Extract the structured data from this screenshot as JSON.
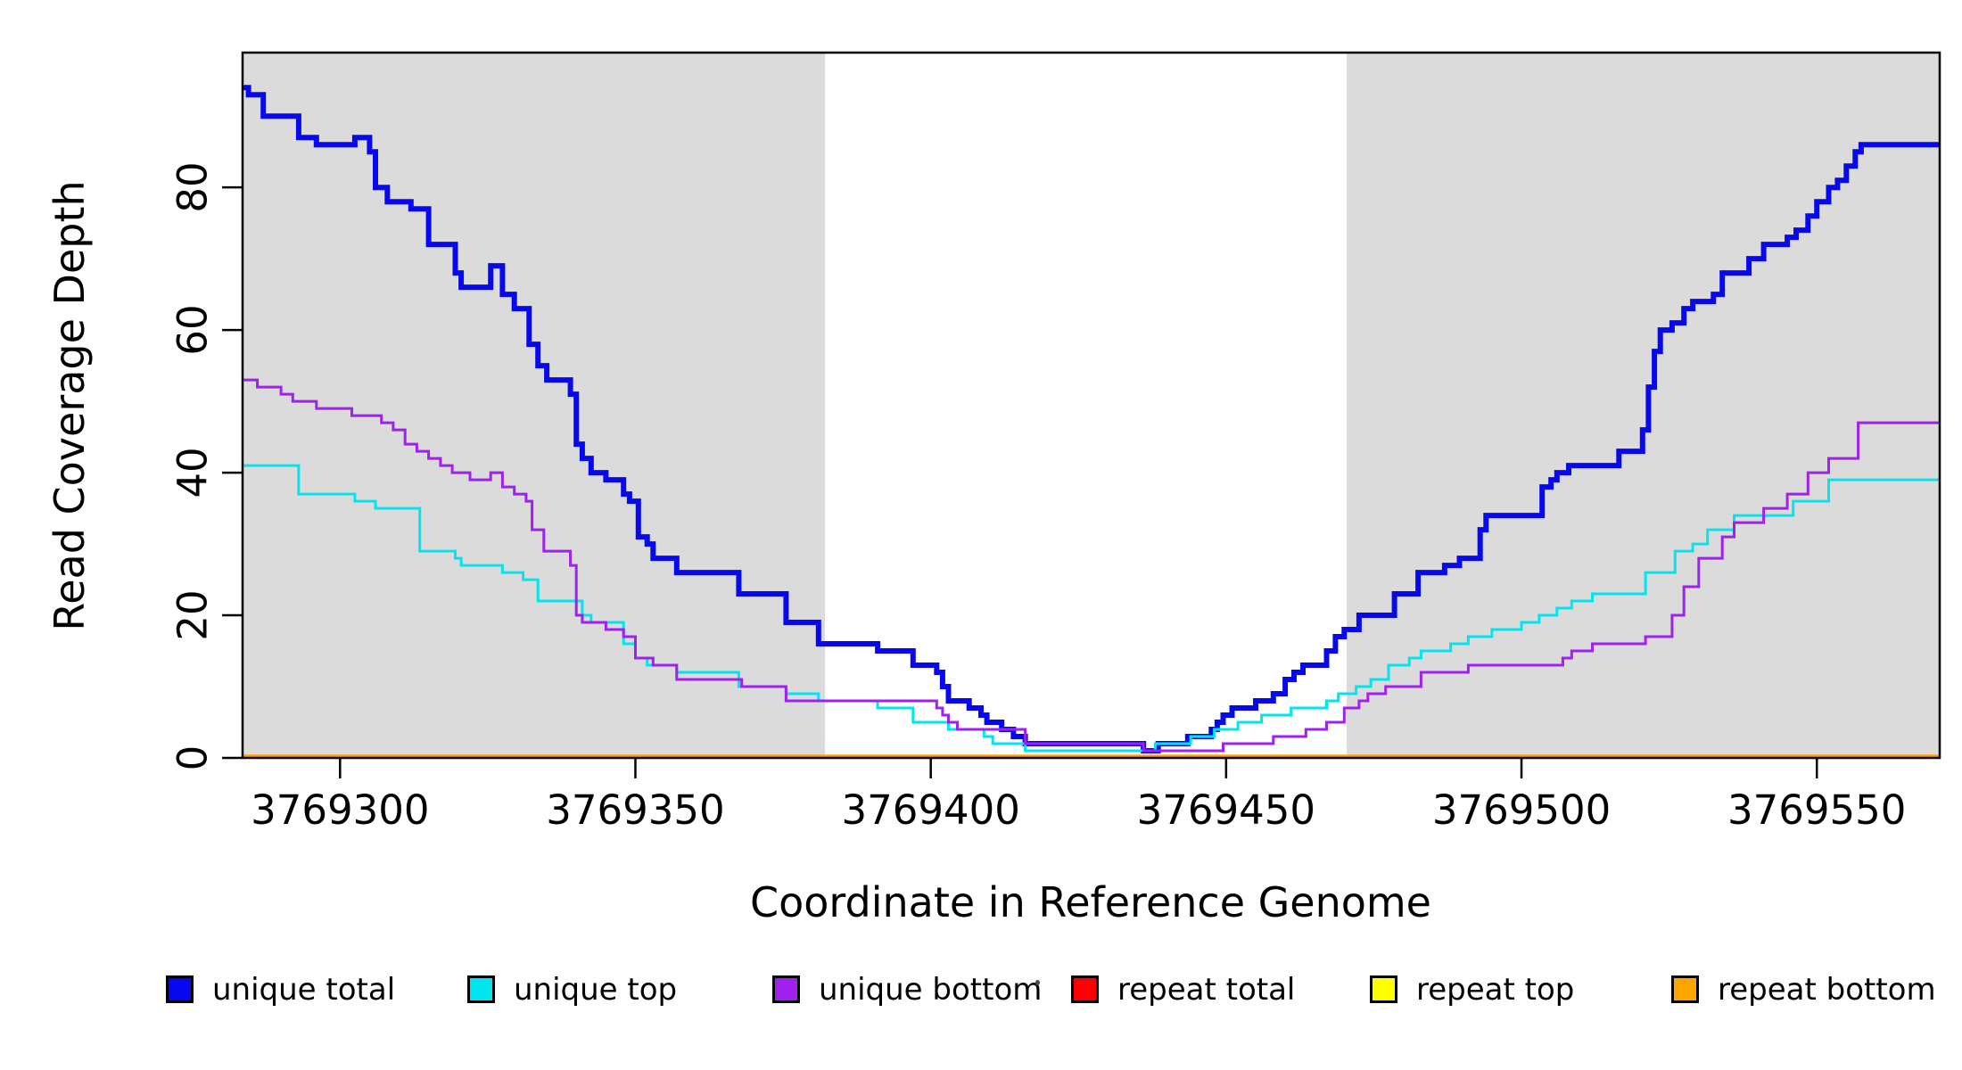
{
  "chart_data": {
    "type": "line",
    "subtype": "step-after-coverage-plot",
    "title": "",
    "xlabel": "Coordinate in Reference Genome",
    "ylabel": "Read Coverage Depth",
    "xlim": [
      3769283.5,
      3769570.8
    ],
    "ylim": [
      0,
      98.9
    ],
    "x_ticks": [
      3769300,
      3769350,
      3769400,
      3769450,
      3769500,
      3769550
    ],
    "y_ticks": [
      0,
      20,
      40,
      60,
      80
    ],
    "grid": false,
    "legend_position": "bottom",
    "background_color": "#ffffff",
    "axis_color": "#000000",
    "shaded_regions": [
      {
        "name": "left-gray-region",
        "x0": 3769283.5,
        "x1": 3769382.1,
        "color": "#dbdbdb"
      },
      {
        "name": "right-gray-region",
        "x0": 3769470.4,
        "x1": 3769570.8,
        "color": "#dbdbdb"
      }
    ],
    "series": [
      {
        "name": "unique total",
        "color": "#0808ee",
        "line_width": 6,
        "steps": [
          [
            3769283.5,
            94
          ],
          [
            3769284.5,
            93
          ],
          [
            3769287,
            90
          ],
          [
            3769293,
            87
          ],
          [
            3769296,
            86
          ],
          [
            3769302.5,
            87
          ],
          [
            3769305,
            85
          ],
          [
            3769306,
            80
          ],
          [
            3769308,
            78
          ],
          [
            3769312,
            77
          ],
          [
            3769315,
            72
          ],
          [
            3769319.5,
            68
          ],
          [
            3769320.5,
            66
          ],
          [
            3769325.5,
            69
          ],
          [
            3769327.5,
            65
          ],
          [
            3769329.5,
            63
          ],
          [
            3769332,
            58
          ],
          [
            3769333.5,
            55
          ],
          [
            3769335,
            53
          ],
          [
            3769339,
            51
          ],
          [
            3769340,
            44
          ],
          [
            3769341,
            42
          ],
          [
            3769342.5,
            40
          ],
          [
            3769345,
            39
          ],
          [
            3769348,
            37
          ],
          [
            3769349,
            36
          ],
          [
            3769350.5,
            31
          ],
          [
            3769352,
            30
          ],
          [
            3769353,
            28
          ],
          [
            3769357,
            26
          ],
          [
            3769367.5,
            23
          ],
          [
            3769375.5,
            19
          ],
          [
            3769381,
            16
          ],
          [
            3769391,
            15
          ],
          [
            3769397,
            13
          ],
          [
            3769401,
            12
          ],
          [
            3769402,
            10
          ],
          [
            3769403,
            8
          ],
          [
            3769406.5,
            7
          ],
          [
            3769408.5,
            6
          ],
          [
            3769409.5,
            5
          ],
          [
            3769412,
            4
          ],
          [
            3769414,
            3
          ],
          [
            3769416,
            2
          ],
          [
            3769436,
            1
          ],
          [
            3769438.5,
            2
          ],
          [
            3769443.5,
            3
          ],
          [
            3769447.5,
            4
          ],
          [
            3769448.5,
            5
          ],
          [
            3769449.5,
            6
          ],
          [
            3769451,
            7
          ],
          [
            3769455,
            8
          ],
          [
            3769458,
            9
          ],
          [
            3769460,
            11
          ],
          [
            3769461.5,
            12
          ],
          [
            3769463,
            13
          ],
          [
            3769467,
            15
          ],
          [
            3769468.5,
            17
          ],
          [
            3769470,
            18
          ],
          [
            3769472.5,
            20
          ],
          [
            3769478.5,
            23
          ],
          [
            3769482.5,
            26
          ],
          [
            3769487,
            27
          ],
          [
            3769489.5,
            28
          ],
          [
            3769493,
            32
          ],
          [
            3769494,
            34
          ],
          [
            3769503.5,
            38
          ],
          [
            3769505,
            39
          ],
          [
            3769506,
            40
          ],
          [
            3769508,
            41
          ],
          [
            3769516.5,
            43
          ],
          [
            3769520.5,
            46
          ],
          [
            3769521.5,
            52
          ],
          [
            3769522.5,
            57
          ],
          [
            3769523.5,
            60
          ],
          [
            3769525.5,
            61
          ],
          [
            3769527.5,
            63
          ],
          [
            3769529,
            64
          ],
          [
            3769532.5,
            65
          ],
          [
            3769534,
            68
          ],
          [
            3769538.5,
            70
          ],
          [
            3769541,
            72
          ],
          [
            3769545,
            73
          ],
          [
            3769546.5,
            74
          ],
          [
            3769548.5,
            76
          ],
          [
            3769550,
            78
          ],
          [
            3769552,
            80
          ],
          [
            3769553.5,
            81
          ],
          [
            3769555,
            83
          ],
          [
            3769556.5,
            85
          ],
          [
            3769557.5,
            86
          ]
        ]
      },
      {
        "name": "unique top",
        "color": "#00e6ee",
        "line_width": 3,
        "steps": [
          [
            3769283.5,
            41
          ],
          [
            3769293,
            37
          ],
          [
            3769302.5,
            36
          ],
          [
            3769306,
            35
          ],
          [
            3769313.5,
            29
          ],
          [
            3769319.5,
            28
          ],
          [
            3769320.5,
            27
          ],
          [
            3769327.5,
            26
          ],
          [
            3769331,
            25
          ],
          [
            3769333.5,
            22
          ],
          [
            3769341,
            20
          ],
          [
            3769342.5,
            19
          ],
          [
            3769348,
            16
          ],
          [
            3769350,
            14
          ],
          [
            3769352,
            13
          ],
          [
            3769357,
            12
          ],
          [
            3769367.5,
            10
          ],
          [
            3769375.5,
            9
          ],
          [
            3769381,
            8
          ],
          [
            3769391,
            7
          ],
          [
            3769397,
            5
          ],
          [
            3769403,
            4
          ],
          [
            3769409,
            3
          ],
          [
            3769410.5,
            2
          ],
          [
            3769416,
            1
          ],
          [
            3769438,
            2
          ],
          [
            3769444,
            3
          ],
          [
            3769448,
            4
          ],
          [
            3769452,
            5
          ],
          [
            3769456,
            6
          ],
          [
            3769461,
            7
          ],
          [
            3769467,
            8
          ],
          [
            3769469,
            9
          ],
          [
            3769472,
            10
          ],
          [
            3769474.5,
            11
          ],
          [
            3769477.5,
            13
          ],
          [
            3769481,
            14
          ],
          [
            3769483,
            15
          ],
          [
            3769488,
            16
          ],
          [
            3769491,
            17
          ],
          [
            3769495,
            18
          ],
          [
            3769500,
            19
          ],
          [
            3769503,
            20
          ],
          [
            3769506,
            21
          ],
          [
            3769508.5,
            22
          ],
          [
            3769512,
            23
          ],
          [
            3769521,
            26
          ],
          [
            3769526,
            29
          ],
          [
            3769529,
            30
          ],
          [
            3769531.5,
            32
          ],
          [
            3769536,
            34
          ],
          [
            3769546,
            36
          ],
          [
            3769552,
            39
          ]
        ]
      },
      {
        "name": "unique bottom",
        "color": "#a020f0",
        "line_width": 3,
        "steps": [
          [
            3769283.5,
            53
          ],
          [
            3769286,
            52
          ],
          [
            3769290,
            51
          ],
          [
            3769292,
            50
          ],
          [
            3769296,
            49
          ],
          [
            3769302,
            48
          ],
          [
            3769307,
            47
          ],
          [
            3769309,
            46
          ],
          [
            3769311,
            44
          ],
          [
            3769313,
            43
          ],
          [
            3769315,
            42
          ],
          [
            3769317,
            41
          ],
          [
            3769319,
            40
          ],
          [
            3769322,
            39
          ],
          [
            3769325.5,
            40
          ],
          [
            3769327.5,
            38
          ],
          [
            3769329.5,
            37
          ],
          [
            3769331.5,
            36
          ],
          [
            3769332.5,
            32
          ],
          [
            3769334.5,
            29
          ],
          [
            3769339,
            27
          ],
          [
            3769340,
            20
          ],
          [
            3769341,
            19
          ],
          [
            3769345,
            18
          ],
          [
            3769348,
            17
          ],
          [
            3769350,
            14
          ],
          [
            3769353,
            13
          ],
          [
            3769357,
            11
          ],
          [
            3769368,
            10
          ],
          [
            3769375.5,
            8
          ],
          [
            3769401,
            7
          ],
          [
            3769402,
            6
          ],
          [
            3769403,
            5
          ],
          [
            3769404.5,
            4
          ],
          [
            3769416,
            2
          ],
          [
            3769436,
            1
          ],
          [
            3769449.5,
            2
          ],
          [
            3769458,
            3
          ],
          [
            3769463.5,
            4
          ],
          [
            3769467,
            5
          ],
          [
            3769470,
            7
          ],
          [
            3769472.5,
            8
          ],
          [
            3769474,
            9
          ],
          [
            3769477,
            10
          ],
          [
            3769483,
            12
          ],
          [
            3769491,
            13
          ],
          [
            3769507,
            14
          ],
          [
            3769508.5,
            15
          ],
          [
            3769512,
            16
          ],
          [
            3769521,
            17
          ],
          [
            3769525.5,
            20
          ],
          [
            3769527.5,
            24
          ],
          [
            3769530,
            28
          ],
          [
            3769534,
            31
          ],
          [
            3769536,
            33
          ],
          [
            3769541,
            35
          ],
          [
            3769545,
            37
          ],
          [
            3769548.5,
            40
          ],
          [
            3769552,
            42
          ],
          [
            3769557,
            47
          ]
        ]
      },
      {
        "name": "repeat total",
        "color": "#ff0000",
        "line_width": 3,
        "steps": [
          [
            3769283.5,
            0
          ]
        ]
      },
      {
        "name": "repeat top",
        "color": "#ffff00",
        "line_width": 3,
        "steps": [
          [
            3769283.5,
            0
          ]
        ]
      },
      {
        "name": "repeat bottom",
        "color": "#ffa500",
        "line_width": 4.5,
        "steps": [
          [
            3769283.5,
            0
          ]
        ]
      }
    ]
  }
}
